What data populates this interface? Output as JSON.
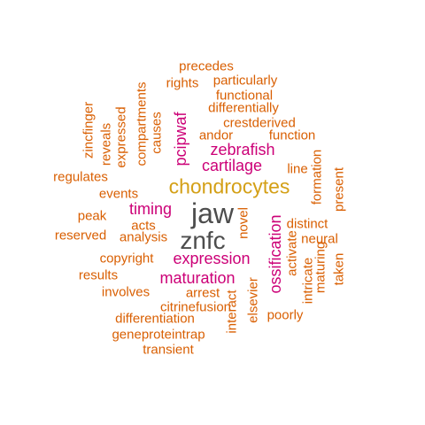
{
  "colors": {
    "top": "#4d4d4d",
    "high": "#d4a017",
    "mid": "#cc0077",
    "low": "#d95f02"
  },
  "words": [
    {
      "text": "jaw",
      "tier": "top"
    },
    {
      "text": "znfc",
      "tier": "top"
    },
    {
      "text": "chondrocytes",
      "tier": "high"
    },
    {
      "text": "zebrafish",
      "tier": "mid"
    },
    {
      "text": "cartilage",
      "tier": "mid"
    },
    {
      "text": "pcipwaf",
      "tier": "mid"
    },
    {
      "text": "timing",
      "tier": "mid"
    },
    {
      "text": "expression",
      "tier": "mid"
    },
    {
      "text": "maturation",
      "tier": "mid"
    },
    {
      "text": "ossification",
      "tier": "mid"
    },
    {
      "text": "precedes",
      "tier": "low"
    },
    {
      "text": "rights",
      "tier": "low"
    },
    {
      "text": "particularly",
      "tier": "low"
    },
    {
      "text": "functional",
      "tier": "low"
    },
    {
      "text": "differentially",
      "tier": "low"
    },
    {
      "text": "crestderived",
      "tier": "low"
    },
    {
      "text": "andor",
      "tier": "low"
    },
    {
      "text": "function",
      "tier": "low"
    },
    {
      "text": "line",
      "tier": "low"
    },
    {
      "text": "zincfinger",
      "tier": "low"
    },
    {
      "text": "reveals",
      "tier": "low"
    },
    {
      "text": "expressed",
      "tier": "low"
    },
    {
      "text": "compartments",
      "tier": "low"
    },
    {
      "text": "causes",
      "tier": "low"
    },
    {
      "text": "regulates",
      "tier": "low"
    },
    {
      "text": "events",
      "tier": "low"
    },
    {
      "text": "formation",
      "tier": "low"
    },
    {
      "text": "present",
      "tier": "low"
    },
    {
      "text": "peak",
      "tier": "low"
    },
    {
      "text": "acts",
      "tier": "low"
    },
    {
      "text": "reserved",
      "tier": "low"
    },
    {
      "text": "analysis",
      "tier": "low"
    },
    {
      "text": "novel",
      "tier": "low"
    },
    {
      "text": "distinct",
      "tier": "low"
    },
    {
      "text": "neural",
      "tier": "low"
    },
    {
      "text": "copyright",
      "tier": "low"
    },
    {
      "text": "activate",
      "tier": "low"
    },
    {
      "text": "results",
      "tier": "low"
    },
    {
      "text": "intricate",
      "tier": "low"
    },
    {
      "text": "maturing",
      "tier": "low"
    },
    {
      "text": "taken",
      "tier": "low"
    },
    {
      "text": "involves",
      "tier": "low"
    },
    {
      "text": "arrest",
      "tier": "low"
    },
    {
      "text": "interact",
      "tier": "low"
    },
    {
      "text": "elsevier",
      "tier": "low"
    },
    {
      "text": "citrinefusion",
      "tier": "low"
    },
    {
      "text": "poorly",
      "tier": "low"
    },
    {
      "text": "differentiation",
      "tier": "low"
    },
    {
      "text": "geneproteintrap",
      "tier": "low"
    },
    {
      "text": "transient",
      "tier": "low"
    }
  ]
}
